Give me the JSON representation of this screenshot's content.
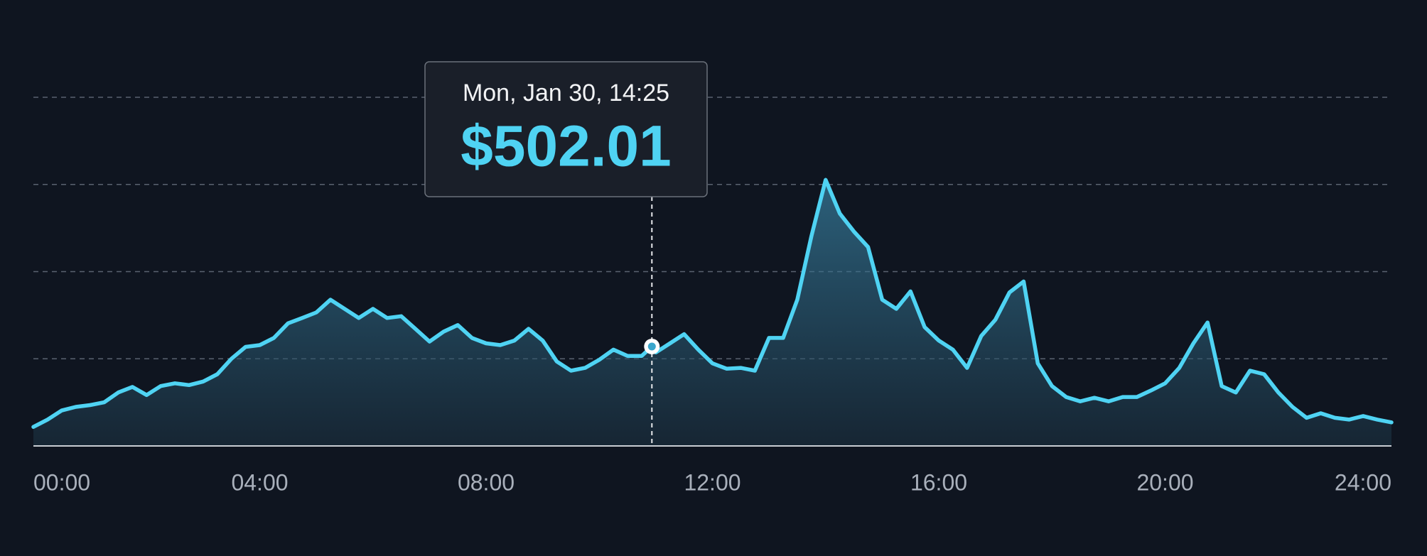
{
  "chart_data": {
    "type": "area",
    "color": "#4fd3f3",
    "x": [
      0,
      0.25,
      0.5,
      0.75,
      1,
      1.25,
      1.5,
      1.75,
      2,
      2.25,
      2.5,
      2.75,
      3,
      3.25,
      3.5,
      3.75,
      4,
      4.25,
      4.5,
      4.75,
      5,
      5.25,
      5.5,
      5.75,
      6,
      6.25,
      6.5,
      6.75,
      7,
      7.25,
      7.5,
      7.75,
      8,
      8.25,
      8.5,
      8.75,
      9,
      9.25,
      9.5,
      9.75,
      10,
      10.25,
      10.5,
      10.75,
      10.93,
      11,
      11.25,
      11.5,
      11.75,
      12,
      12.25,
      12.5,
      12.75,
      13,
      13.25,
      13.5,
      13.75,
      14,
      14.25,
      14.5,
      14.75,
      15,
      15.25,
      15.5,
      15.75,
      16,
      16.25,
      16.5,
      16.75,
      17,
      17.25,
      17.5,
      17.75,
      18,
      18.25,
      18.5,
      18.75,
      19,
      19.25,
      19.5,
      19.75,
      20,
      20.25,
      20.5,
      20.75,
      21,
      21.25,
      21.5,
      21.75,
      22,
      22.25,
      22.5,
      22.75,
      23,
      23.25,
      23.5,
      23.75,
      24
    ],
    "values": [
      96,
      133,
      179,
      197,
      206,
      220,
      270,
      298,
      257,
      302,
      316,
      307,
      325,
      362,
      440,
      500,
      509,
      545,
      619,
      646,
      674,
      738,
      692,
      646,
      692,
      646,
      655,
      591,
      527,
      577,
      610,
      545,
      518,
      509,
      532,
      591,
      532,
      426,
      380,
      394,
      435,
      486,
      454,
      454,
      502.01,
      472,
      518,
      564,
      486,
      417,
      390,
      394,
      380,
      545,
      545,
      738,
      1059,
      1343,
      1173,
      1082,
      1004,
      738,
      692,
      780,
      600,
      532,
      486,
      394,
      555,
      637,
      775,
      830,
      417,
      302,
      247,
      225,
      243,
      225,
      247,
      247,
      280,
      316,
      394,
      518,
      623,
      302,
      270,
      380,
      362,
      270,
      197,
      142,
      165,
      142,
      133,
      151,
      133,
      119
    ],
    "value_labels": [
      null,
      null,
      null,
      null,
      null,
      null,
      null,
      null,
      null,
      null,
      null,
      null,
      null,
      null,
      null,
      null,
      null,
      null,
      null,
      null,
      null,
      null,
      null,
      null,
      null,
      null,
      null,
      null,
      null,
      null,
      null,
      null,
      null,
      null,
      null,
      null,
      null,
      null,
      null,
      null,
      null,
      null,
      null,
      null,
      "$502.01",
      null,
      null,
      null,
      null,
      null,
      null,
      null,
      null,
      null,
      null,
      null,
      null,
      null,
      null,
      null,
      null,
      null,
      null,
      null,
      null,
      null,
      null,
      null,
      null,
      null,
      null,
      null,
      null,
      null,
      null,
      null,
      null,
      null,
      null,
      null,
      null,
      null,
      null,
      null,
      null,
      null,
      null,
      null,
      null,
      null,
      null,
      null,
      null,
      null,
      null,
      null,
      null,
      null
    ],
    "tooltip": "Mon, Jan 30, 14:25",
    "xlim": [
      0,
      24
    ],
    "xticks": [
      {
        "value": 0,
        "label": "00:00"
      },
      {
        "value": 4,
        "label": "04:00"
      },
      {
        "value": 8,
        "label": "08:00"
      },
      {
        "value": 12,
        "label": "12:00"
      },
      {
        "value": 16,
        "label": "16:00"
      },
      {
        "value": 20,
        "label": "20:00"
      },
      {
        "value": 24,
        "label": "24:00"
      }
    ],
    "ylim": [
      0,
      2000
    ],
    "yticks": [
      0,
      440,
      880,
      1320,
      1760
    ],
    "grid": true
  }
}
